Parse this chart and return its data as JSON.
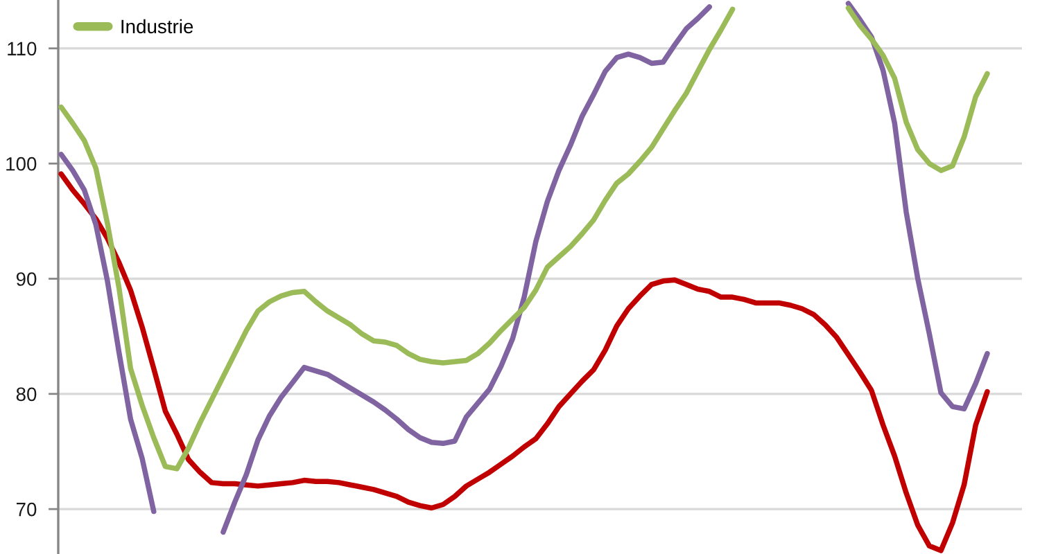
{
  "chart_data": {
    "type": "line",
    "categories": [
      null,
      null,
      null,
      null,
      null,
      null,
      null,
      null,
      null,
      null,
      null,
      null,
      null,
      null,
      null,
      null,
      null,
      null,
      null,
      null,
      null,
      null,
      null,
      null,
      null,
      null,
      null,
      null,
      null,
      null,
      null,
      null,
      null,
      null,
      null,
      null,
      null,
      null,
      null,
      null,
      null,
      null,
      null,
      null,
      null,
      null,
      null,
      null,
      null,
      null,
      null,
      null,
      null,
      null,
      null,
      null,
      null,
      null,
      null,
      null,
      null,
      null,
      null,
      null,
      null,
      null,
      null,
      null,
      null,
      null,
      null,
      null,
      null,
      null,
      null,
      null,
      null,
      null,
      null,
      null,
      null
    ],
    "series": [
      {
        "color": "#c00000",
        "values": [
          99.1,
          97.7,
          96.5,
          95.2,
          93.5,
          91.4,
          89.0,
          85.8,
          82.2,
          78.5,
          76.5,
          74.3,
          73.2,
          72.3,
          72.2,
          72.2,
          72.1,
          72.0,
          72.1,
          72.2,
          72.3,
          72.5,
          72.4,
          72.4,
          72.3,
          72.1,
          71.9,
          71.7,
          71.4,
          71.1,
          70.6,
          70.3,
          70.1,
          70.4,
          71.1,
          72.0,
          72.6,
          73.2,
          73.9,
          74.6,
          75.4,
          76.1,
          77.4,
          78.9,
          80.0,
          81.1,
          82.1,
          83.8,
          85.9,
          87.4,
          88.5,
          89.5,
          89.8,
          89.9,
          89.5,
          89.1,
          88.9,
          88.4,
          88.4,
          88.2,
          87.9,
          87.9,
          87.9,
          87.7,
          87.4,
          86.9,
          86.0,
          84.9,
          83.4,
          81.9,
          80.3,
          77.3,
          74.6,
          71.4,
          68.6,
          66.8,
          66.4,
          68.8,
          72.1,
          77.3,
          80.2
        ]
      },
      {
        "color": "#8064a2",
        "values": [
          100.8,
          99.4,
          97.7,
          94.7,
          89.8,
          83.6,
          77.8,
          74.4,
          69.8,
          null,
          null,
          null,
          null,
          null,
          68.0,
          70.6,
          73.0,
          76.0,
          78.1,
          79.7,
          81.0,
          82.3,
          82.0,
          81.7,
          81.1,
          80.5,
          79.9,
          79.3,
          78.6,
          77.8,
          76.9,
          76.2,
          75.8,
          75.7,
          75.9,
          78.0,
          79.2,
          80.4,
          82.4,
          84.8,
          88.4,
          93.2,
          96.7,
          99.4,
          101.6,
          104.1,
          106.0,
          108.0,
          109.2,
          109.5,
          109.2,
          108.7,
          108.8,
          110.3,
          111.7,
          112.6,
          113.6,
          null,
          null,
          null,
          null,
          null,
          null,
          null,
          null,
          null,
          null,
          null,
          113.9,
          112.5,
          111.0,
          108.1,
          103.5,
          95.8,
          90.0,
          85.2,
          80.1,
          78.9,
          78.7,
          80.9,
          83.5
        ]
      },
      {
        "name": "Industrie",
        "color": "#9bbb59",
        "values": [
          104.9,
          103.5,
          102.0,
          99.6,
          94.8,
          89.2,
          82.2,
          79.0,
          76.2,
          73.7,
          73.5,
          75.3,
          77.5,
          79.5,
          81.5,
          83.5,
          85.5,
          87.2,
          88.0,
          88.5,
          88.8,
          88.9,
          88.0,
          87.2,
          86.6,
          86.0,
          85.2,
          84.6,
          84.5,
          84.2,
          83.5,
          83.0,
          82.8,
          82.7,
          82.8,
          82.9,
          83.5,
          84.4,
          85.5,
          86.5,
          87.5,
          89.0,
          91.0,
          91.9,
          92.8,
          93.9,
          95.1,
          96.8,
          98.3,
          99.1,
          100.2,
          101.4,
          103.0,
          104.6,
          106.1,
          108.0,
          109.9,
          111.6,
          113.4,
          null,
          null,
          null,
          null,
          null,
          null,
          null,
          null,
          null,
          113.5,
          112.0,
          110.8,
          109.4,
          107.4,
          103.6,
          101.2,
          100.0,
          99.4,
          99.8,
          102.3,
          105.8,
          107.8
        ]
      }
    ],
    "ylim": [
      66.1,
      114.2
    ],
    "yticks": [
      70,
      80,
      90,
      100,
      110
    ],
    "grid": "y",
    "legend": "top left",
    "tick_labels": "y"
  }
}
